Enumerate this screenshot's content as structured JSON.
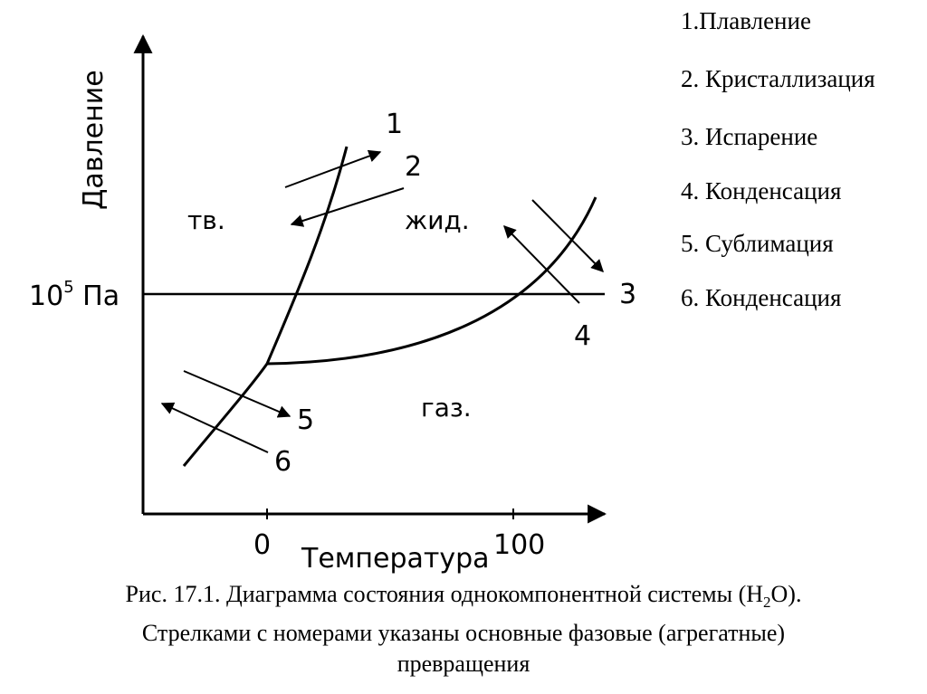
{
  "diagram": {
    "y_axis_label": "Давление",
    "x_axis_label": "Температура",
    "pressure_label": "10",
    "pressure_exponent": "5",
    "pressure_unit": " Па",
    "tick_zero": "0",
    "tick_hundred": "100",
    "region_solid": "тв.",
    "region_liquid": "жид.",
    "region_gas": "газ.",
    "arrow_labels": [
      "1",
      "2",
      "3",
      "4",
      "5",
      "6"
    ]
  },
  "legend": {
    "items": [
      "1.Плавление",
      "2. Кристаллизация",
      "3. Испарение",
      "4. Конденсация",
      "5. Сублимация",
      "6. Конденсация"
    ]
  },
  "caption": {
    "line1": "Рис. 17.1. Диаграмма состояния однокомпонентной системы (H",
    "line1_sub": "2",
    "line1_end": "O).",
    "line2": "Стрелками с номерами указаны основные фазовые (агрегатные)",
    "line3": "превращения"
  }
}
